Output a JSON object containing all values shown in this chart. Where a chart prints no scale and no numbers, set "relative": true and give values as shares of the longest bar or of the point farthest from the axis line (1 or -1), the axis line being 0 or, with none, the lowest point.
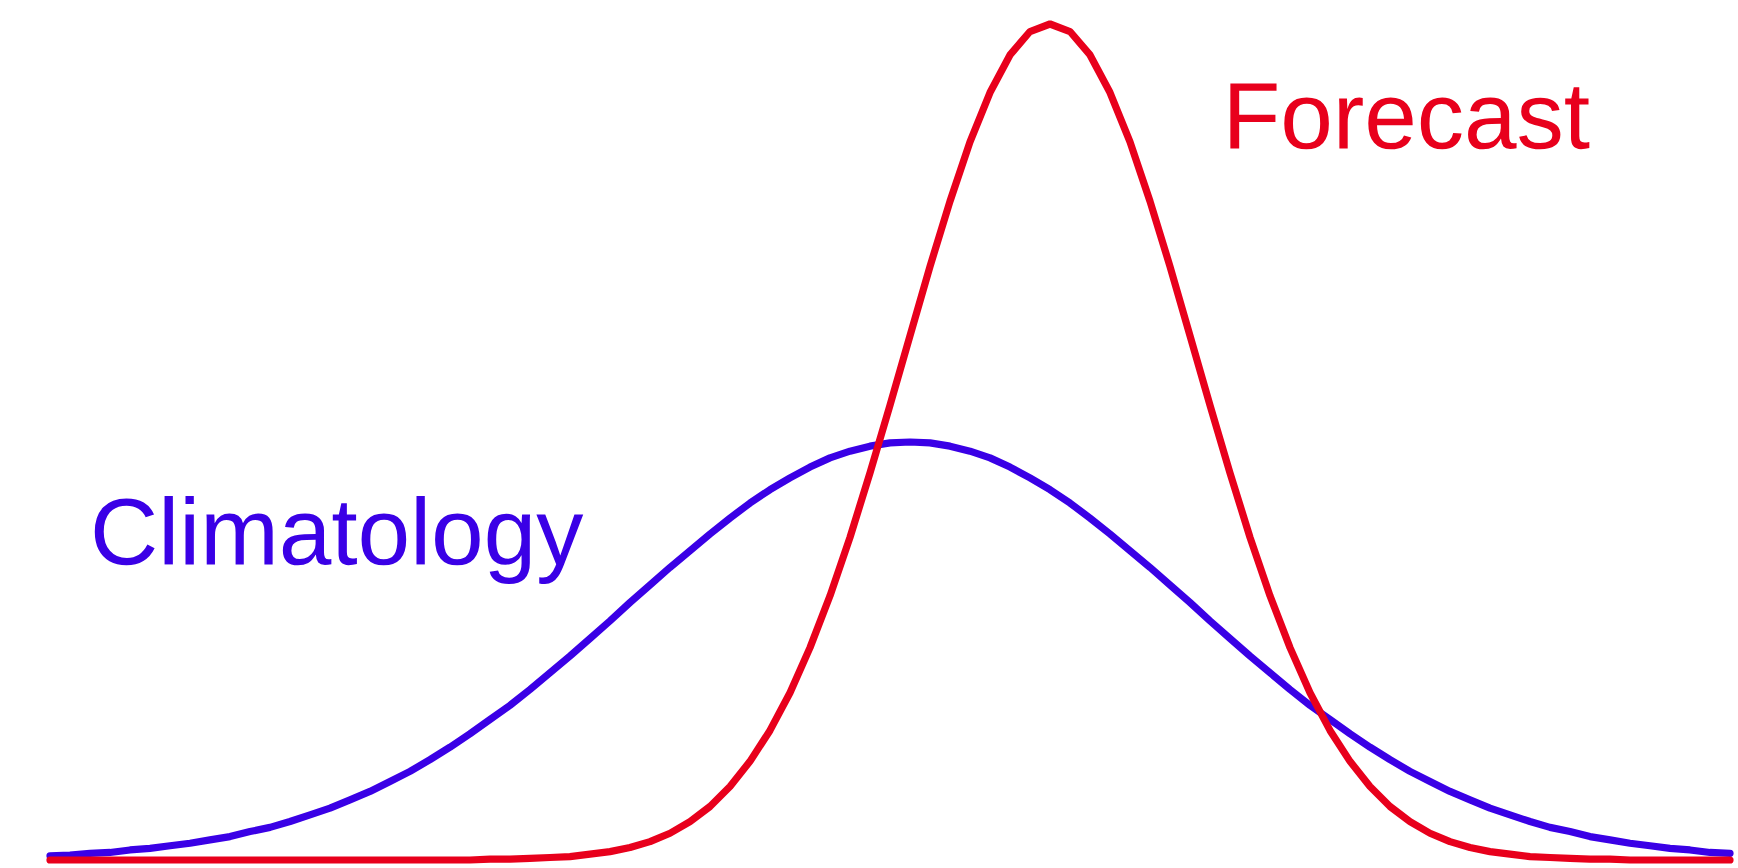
{
  "chart_data": {
    "type": "line",
    "relative": true,
    "categories": [
      null,
      null,
      null,
      null,
      null,
      null,
      null,
      null,
      null,
      null,
      null,
      null,
      null,
      null,
      null,
      null,
      null,
      null,
      null,
      null,
      null,
      null,
      null,
      null,
      null,
      null,
      null,
      null,
      null,
      null,
      null,
      null,
      null,
      null,
      null,
      null,
      null,
      null,
      null,
      null,
      null,
      null,
      null,
      null,
      null,
      null,
      null,
      null,
      null,
      null,
      null,
      null,
      null,
      null,
      null,
      null,
      null,
      null,
      null,
      null,
      null,
      null,
      null,
      null,
      null,
      null,
      null,
      null,
      null,
      null,
      null,
      null,
      null,
      null,
      null,
      null,
      null,
      null,
      null,
      null,
      null,
      null,
      null,
      null,
      null
    ],
    "series": [
      {
        "name": "Climatology",
        "color": "#3a00e6",
        "values": [
          0.005,
          0.006,
          0.008,
          0.009,
          0.012,
          0.014,
          0.017,
          0.02,
          0.024,
          0.028,
          0.034,
          0.039,
          0.046,
          0.054,
          0.062,
          0.072,
          0.082,
          0.094,
          0.106,
          0.12,
          0.135,
          0.151,
          0.168,
          0.185,
          0.204,
          0.224,
          0.244,
          0.265,
          0.286,
          0.308,
          0.329,
          0.35,
          0.37,
          0.39,
          0.409,
          0.427,
          0.443,
          0.457,
          0.47,
          0.481,
          0.489,
          0.495,
          0.499,
          0.5,
          0.499,
          0.495,
          0.489,
          0.481,
          0.47,
          0.457,
          0.443,
          0.427,
          0.409,
          0.39,
          0.37,
          0.35,
          0.329,
          0.308,
          0.286,
          0.265,
          0.244,
          0.224,
          0.204,
          0.185,
          0.168,
          0.151,
          0.135,
          0.12,
          0.106,
          0.094,
          0.082,
          0.072,
          0.062,
          0.054,
          0.046,
          0.039,
          0.034,
          0.028,
          0.024,
          0.02,
          0.017,
          0.014,
          0.012,
          0.009,
          0.008
        ]
      },
      {
        "name": "Forecast",
        "color": "#e8001c",
        "values": [
          0,
          0,
          0,
          0,
          0,
          0,
          0,
          0,
          0,
          0,
          0,
          0,
          0,
          0,
          0,
          0,
          0,
          0,
          0,
          0,
          0,
          0,
          0.001,
          0.001,
          0.002,
          0.003,
          0.004,
          0.007,
          0.01,
          0.015,
          0.022,
          0.032,
          0.046,
          0.064,
          0.088,
          0.118,
          0.155,
          0.2,
          0.254,
          0.316,
          0.386,
          0.463,
          0.544,
          0.627,
          0.71,
          0.788,
          0.859,
          0.918,
          0.963,
          0.991,
          1.0,
          0.991,
          0.963,
          0.918,
          0.859,
          0.788,
          0.71,
          0.627,
          0.544,
          0.463,
          0.386,
          0.316,
          0.254,
          0.2,
          0.155,
          0.118,
          0.088,
          0.064,
          0.046,
          0.032,
          0.022,
          0.015,
          0.01,
          0.007,
          0.004,
          0.003,
          0.002,
          0.001,
          0.001,
          0,
          0,
          0,
          0,
          0,
          0
        ]
      }
    ]
  }
}
